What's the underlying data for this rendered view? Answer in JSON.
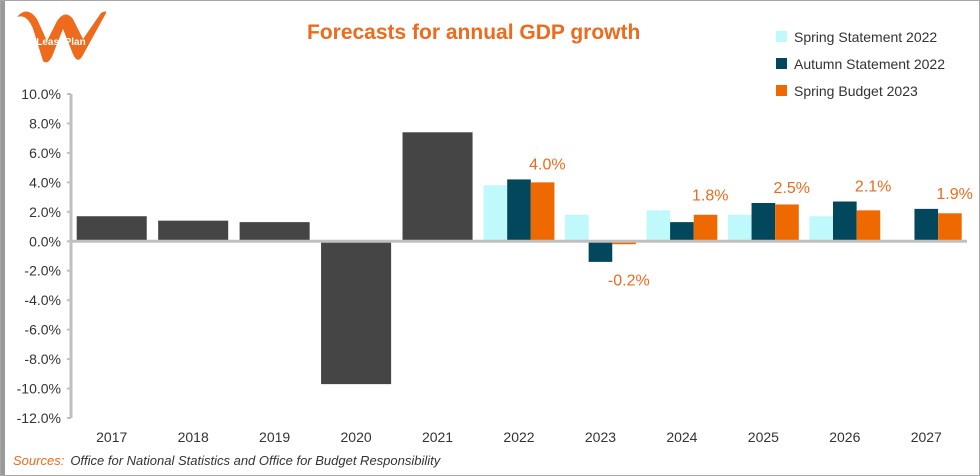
{
  "logo": {
    "text": "LeasePlan"
  },
  "chart_data": {
    "type": "bar",
    "title": "Forecasts for annual GDP growth",
    "categories": [
      "2017",
      "2018",
      "2019",
      "2020",
      "2021",
      "2022",
      "2023",
      "2024",
      "2025",
      "2026",
      "2027"
    ],
    "historical": {
      "color": "#454545",
      "values": [
        1.7,
        1.4,
        1.3,
        -9.7,
        7.4,
        null,
        null,
        null,
        null,
        null,
        null
      ]
    },
    "series": [
      {
        "name": "Spring Statement 2022",
        "color": "#bff9fb",
        "values": [
          null,
          null,
          null,
          null,
          null,
          3.8,
          1.8,
          2.1,
          1.8,
          1.7,
          null
        ]
      },
      {
        "name": "Autumn Statement 2022",
        "color": "#02475c",
        "values": [
          null,
          null,
          null,
          null,
          null,
          4.2,
          -1.4,
          1.3,
          2.6,
          2.7,
          2.2
        ]
      },
      {
        "name": "Spring Budget 2023",
        "color": "#ee6a00",
        "values": [
          null,
          null,
          null,
          null,
          null,
          4.0,
          -0.2,
          1.8,
          2.5,
          2.1,
          1.9
        ]
      }
    ],
    "data_labels": [
      "",
      "",
      "",
      "",
      "",
      "4.0%",
      "-0.2%",
      "1.8%",
      "2.5%",
      "2.1%",
      "1.9%"
    ],
    "ylim": [
      -12,
      10
    ],
    "yticks": [
      "10.0%",
      "8.0%",
      "6.0%",
      "4.0%",
      "2.0%",
      "0.0%",
      "-2.0%",
      "-4.0%",
      "-6.0%",
      "-8.0%",
      "-10.0%",
      "-12.0%"
    ],
    "ytick_values": [
      10,
      8,
      6,
      4,
      2,
      0,
      -2,
      -4,
      -6,
      -8,
      -10,
      -12
    ],
    "legend_position": "top-right",
    "grid": false
  },
  "source": {
    "label": "Sources:",
    "text": "Office for National Statistics and Office for Budget Responsibility"
  }
}
